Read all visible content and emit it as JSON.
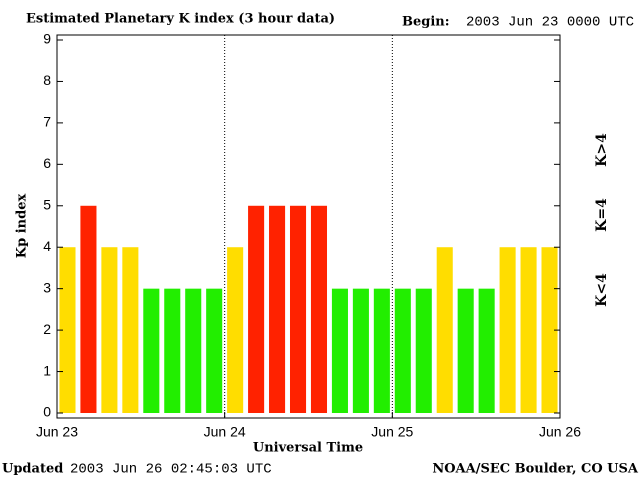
{
  "chart_data": {
    "type": "bar",
    "title": "Estimated Planetary K index (3 hour data)",
    "begin_label": "Begin:",
    "begin_value": "2003 Jun 23 0000 UTC",
    "x_label": "Universal Time",
    "y_label": "Kp index",
    "updated_label": "Updated",
    "updated_value": "2003 Jun 26 02:45:03 UTC",
    "credit": "NOAA/SEC Boulder, CO USA",
    "x": [
      0,
      3,
      6,
      9,
      12,
      15,
      18,
      21,
      24,
      27,
      30,
      33,
      36,
      39,
      42,
      45,
      48,
      51,
      54,
      57,
      60,
      63,
      66,
      69
    ],
    "values": [
      4,
      5,
      4,
      4,
      3,
      3,
      3,
      3,
      4,
      5,
      5,
      5,
      5,
      3,
      3,
      3,
      3,
      3,
      4,
      3,
      3,
      4,
      4,
      4
    ],
    "colors": [
      "#ffdd00",
      "#ff2200",
      "#ffdd00",
      "#ffdd00",
      "#22ee00",
      "#22ee00",
      "#22ee00",
      "#22ee00",
      "#ffdd00",
      "#ff2200",
      "#ff2200",
      "#ff2200",
      "#ff2200",
      "#22ee00",
      "#22ee00",
      "#22ee00",
      "#22ee00",
      "#22ee00",
      "#ffdd00",
      "#22ee00",
      "#22ee00",
      "#ffdd00",
      "#ffdd00",
      "#ffdd00"
    ],
    "bar_width": 2.3,
    "xlim": [
      0,
      72
    ],
    "xticks": [
      {
        "value": 0,
        "label": "Jun 23"
      },
      {
        "value": 24,
        "label": "Jun 24"
      },
      {
        "value": 48,
        "label": "Jun 25"
      },
      {
        "value": 72,
        "label": "Jun 26"
      }
    ],
    "ylim": [
      0,
      9
    ],
    "yticks": [
      0,
      1,
      2,
      3,
      4,
      5,
      6,
      7,
      8,
      9
    ],
    "day_dividers": true,
    "legend": [
      {
        "label": "K>4",
        "color": "#ff2200"
      },
      {
        "label": "K=4",
        "color": "#ffdd00"
      },
      {
        "label": "K<4",
        "color": "#22ee00"
      }
    ]
  }
}
